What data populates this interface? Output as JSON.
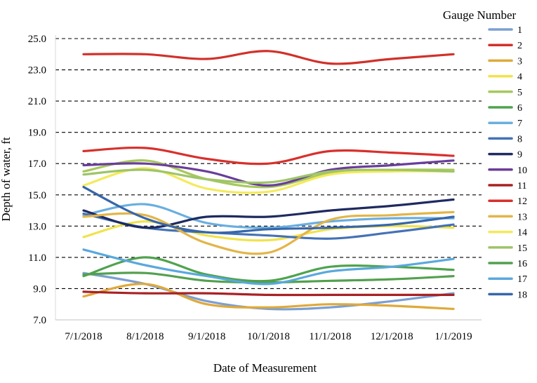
{
  "chart_data": {
    "type": "line",
    "xlabel": "Date of Measurement",
    "ylabel": "Depth of water, ft",
    "ylim": [
      7.0,
      25.0
    ],
    "yticks": [
      "7.0",
      "9.0",
      "11.0",
      "13.0",
      "15.0",
      "17.0",
      "19.0",
      "21.0",
      "23.0",
      "25.0"
    ],
    "x": [
      "7/1/2018",
      "8/1/2018",
      "9/1/2018",
      "10/1/2018",
      "11/1/2018",
      "12/1/2018",
      "1/1/2019"
    ],
    "grid": "horizontal dashed",
    "legend": {
      "title": "Gauge Number",
      "placement": "right"
    },
    "series": [
      {
        "name": "1",
        "color": "#7b9fd2",
        "values": [
          10.0,
          9.3,
          8.2,
          7.7,
          7.8,
          8.2,
          8.7
        ]
      },
      {
        "name": "2",
        "color": "#d1312a",
        "values": [
          24.0,
          24.0,
          23.7,
          24.2,
          23.4,
          23.7,
          24.0
        ]
      },
      {
        "name": "3",
        "color": "#dfa93a",
        "values": [
          8.5,
          9.3,
          8.0,
          7.8,
          8.0,
          7.9,
          7.7
        ]
      },
      {
        "name": "4",
        "color": "#f0e34c",
        "values": [
          12.3,
          13.3,
          12.4,
          12.1,
          12.8,
          13.0,
          12.9
        ]
      },
      {
        "name": "5",
        "color": "#a6c85d",
        "values": [
          16.5,
          17.2,
          16.0,
          15.5,
          16.4,
          16.6,
          16.6
        ]
      },
      {
        "name": "6",
        "color": "#4fa34e",
        "values": [
          9.8,
          11.0,
          9.9,
          9.5,
          10.4,
          10.4,
          10.2
        ]
      },
      {
        "name": "7",
        "color": "#6aaee0",
        "values": [
          13.7,
          14.4,
          13.2,
          12.9,
          13.3,
          13.5,
          13.5
        ]
      },
      {
        "name": "8",
        "color": "#4472b6",
        "values": [
          13.8,
          12.9,
          12.6,
          12.4,
          12.2,
          12.6,
          13.1
        ]
      },
      {
        "name": "9",
        "color": "#1f2a60",
        "values": [
          14.0,
          12.9,
          13.6,
          13.6,
          14.0,
          14.3,
          14.7
        ]
      },
      {
        "name": "10",
        "color": "#6a3d9a",
        "values": [
          16.9,
          17.0,
          16.5,
          15.6,
          16.6,
          16.9,
          17.2
        ]
      },
      {
        "name": "11",
        "color": "#a82124",
        "values": [
          8.8,
          8.7,
          8.7,
          8.6,
          8.6,
          8.6,
          8.6
        ]
      },
      {
        "name": "12",
        "color": "#d8302c",
        "values": [
          17.8,
          18.0,
          17.3,
          17.0,
          17.8,
          17.7,
          17.5
        ]
      },
      {
        "name": "13",
        "color": "#e3b548",
        "values": [
          13.6,
          13.7,
          11.9,
          11.3,
          13.4,
          13.7,
          13.9
        ]
      },
      {
        "name": "14",
        "color": "#f4ea5b",
        "values": [
          15.6,
          16.7,
          15.4,
          15.2,
          16.3,
          16.5,
          16.5
        ]
      },
      {
        "name": "15",
        "color": "#9fc469",
        "values": [
          16.3,
          16.6,
          16.0,
          15.8,
          16.5,
          16.6,
          16.5
        ]
      },
      {
        "name": "16",
        "color": "#53a04f",
        "values": [
          9.9,
          10.0,
          9.5,
          9.4,
          9.5,
          9.6,
          9.8
        ]
      },
      {
        "name": "17",
        "color": "#5aa8dd",
        "values": [
          11.5,
          10.5,
          9.8,
          9.3,
          10.1,
          10.4,
          10.9
        ]
      },
      {
        "name": "18",
        "color": "#3766a9",
        "values": [
          15.5,
          13.5,
          12.6,
          12.8,
          12.9,
          13.1,
          13.6
        ]
      }
    ]
  }
}
